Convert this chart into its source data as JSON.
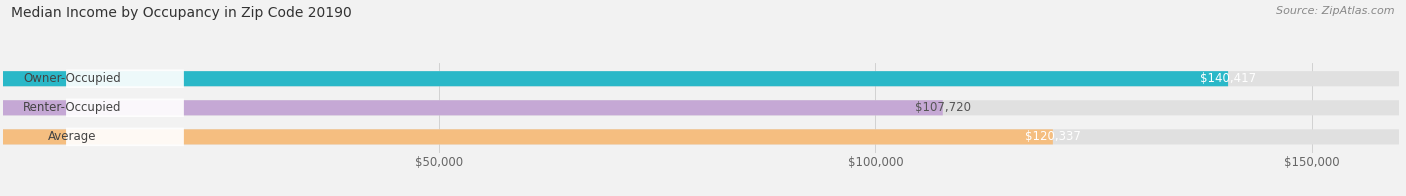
{
  "title": "Median Income by Occupancy in Zip Code 20190",
  "source": "Source: ZipAtlas.com",
  "categories": [
    "Owner-Occupied",
    "Renter-Occupied",
    "Average"
  ],
  "values": [
    140417,
    107720,
    120337
  ],
  "bar_colors": [
    "#2ab8c8",
    "#c5a8d5",
    "#f5be80"
  ],
  "value_labels": [
    "$140,417",
    "$107,720",
    "$120,337"
  ],
  "value_label_colors": [
    "white",
    "#555555",
    "white"
  ],
  "xlim": [
    0,
    160000
  ],
  "xticks": [
    0,
    50000,
    100000,
    150000
  ],
  "xticklabels": [
    "",
    "$50,000",
    "$100,000",
    "$150,000"
  ],
  "background_color": "#f2f2f2",
  "bar_background_color": "#e0e0e0",
  "title_fontsize": 10,
  "source_fontsize": 8,
  "label_fontsize": 8.5,
  "value_fontsize": 8.5,
  "tick_fontsize": 8.5
}
